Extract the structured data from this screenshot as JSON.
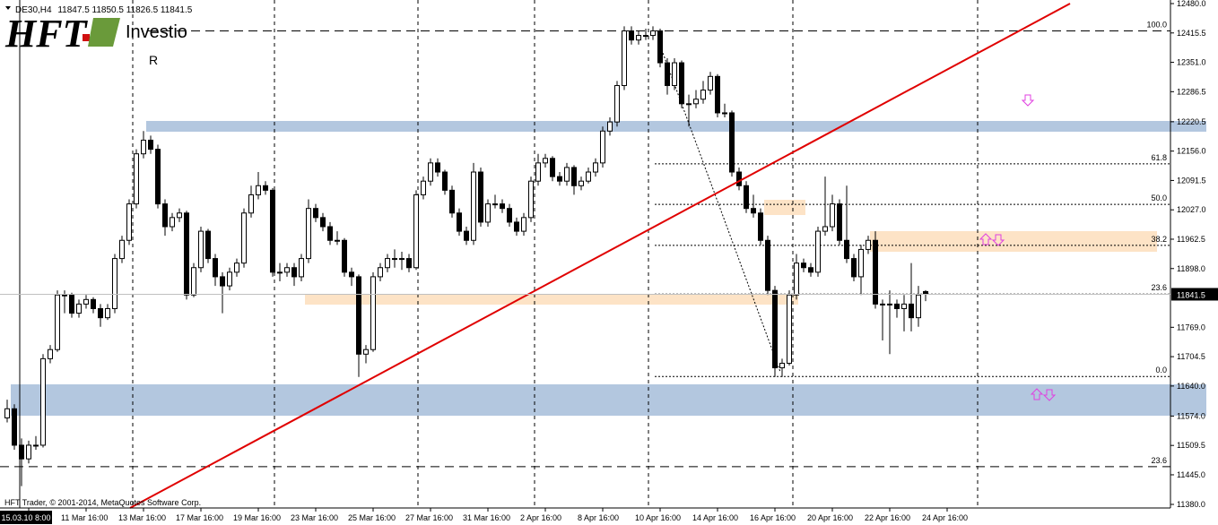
{
  "logo": {
    "brand": "HFT",
    "name": "Investio",
    "mark": "R"
  },
  "footer": "HFT Trader, © 2001-2014, MetaQuotes Software Corp.",
  "chart_data": {
    "type": "candlestick",
    "title": "DE30,H4",
    "ylim": [
      11380,
      12480
    ],
    "yticks": [
      {
        "value": 12480,
        "label": "12480.0"
      },
      {
        "value": 12415.5,
        "label": "12415.5"
      },
      {
        "value": 12351,
        "label": "12351.0"
      },
      {
        "value": 12286.5,
        "label": "12286.5"
      },
      {
        "value": 12220.5,
        "label": "12220.5"
      },
      {
        "value": 12156,
        "label": "12156.0"
      },
      {
        "value": 12091.5,
        "label": "12091.5"
      },
      {
        "value": 12027,
        "label": "12027.0"
      },
      {
        "value": 11962.5,
        "label": "11962.5"
      },
      {
        "value": 11898,
        "label": "11898.0"
      },
      {
        "value": 11769,
        "label": "11769.0"
      },
      {
        "value": 11704.5,
        "label": "11704.5"
      },
      {
        "value": 11640,
        "label": "11640.0"
      },
      {
        "value": 11574,
        "label": "11574.0"
      },
      {
        "value": 11509.5,
        "label": "11509.5"
      },
      {
        "value": 11445,
        "label": "11445.0"
      },
      {
        "value": 11380,
        "label": "11380.0"
      }
    ],
    "fibonacci": [
      {
        "value": 12420,
        "label": "100.0"
      },
      {
        "value": 12128,
        "label": "61.8"
      },
      {
        "value": 12039,
        "label": "50.0"
      },
      {
        "value": 11949,
        "label": "38.2"
      },
      {
        "value": 11842,
        "label": "23.6"
      },
      {
        "value": 11661,
        "label": "0.0"
      },
      {
        "value": 11463,
        "label": "23.6"
      }
    ],
    "x": [
      null,
      null,
      null,
      "15.03.10 8:00",
      null,
      null,
      null,
      null,
      null,
      null,
      null,
      "11 Mar 16:00",
      null,
      null,
      null,
      null,
      null,
      null,
      null,
      "13 Mar 16:00",
      null,
      null,
      null,
      null,
      null,
      null,
      null,
      "17 Mar 16:00",
      null,
      null,
      null,
      null,
      null,
      null,
      null,
      "19 Mar 16:00",
      null,
      null,
      null,
      null,
      null,
      null,
      null,
      "23 Mar 16:00",
      null,
      null,
      null,
      null,
      null,
      null,
      null,
      "25 Mar 16:00",
      null,
      null,
      null,
      null,
      null,
      null,
      null,
      "27 Mar 16:00",
      null,
      null,
      null,
      null,
      null,
      null,
      null,
      "31 Mar 16:00",
      null,
      null,
      null,
      null,
      null,
      null,
      null,
      "2 Apr 16:00",
      null,
      null,
      null,
      null,
      null,
      null,
      null,
      "8 Apr 16:00",
      null,
      null,
      null,
      null,
      null,
      null,
      null,
      "10 Apr 16:00",
      null,
      null,
      null,
      null,
      null,
      null,
      null,
      "14 Apr 16:00",
      null,
      null,
      null,
      null,
      null,
      null,
      null,
      "16 Apr 16:00",
      null,
      null,
      null,
      null,
      null,
      null,
      null,
      "20 Apr 16:00",
      null,
      null,
      null,
      null,
      null,
      null,
      null,
      "22 Apr 16:00",
      null,
      null,
      null,
      null,
      null,
      null,
      null,
      "24 Apr 16:00"
    ],
    "ohlc": [
      [
        11570,
        11610,
        11560,
        11590
      ],
      [
        11590,
        11600,
        11500,
        11510
      ],
      [
        11510,
        11525,
        11420,
        11480
      ],
      [
        11480,
        11520,
        11470,
        11510
      ],
      [
        11510,
        11530,
        11500,
        11510
      ],
      [
        11510,
        11710,
        11505,
        11700
      ],
      [
        11700,
        11730,
        11690,
        11720
      ],
      [
        11720,
        11850,
        11715,
        11840
      ],
      [
        11840,
        11850,
        11800,
        11840
      ],
      [
        11840,
        11845,
        11790,
        11800
      ],
      [
        11800,
        11830,
        11790,
        11820
      ],
      [
        11820,
        11840,
        11810,
        11830
      ],
      [
        11830,
        11835,
        11800,
        11810
      ],
      [
        11810,
        11820,
        11770,
        11790
      ],
      [
        11790,
        11820,
        11785,
        11810
      ],
      [
        11810,
        11930,
        11800,
        11920
      ],
      [
        11920,
        11970,
        11910,
        11960
      ],
      [
        11960,
        12050,
        11950,
        12040
      ],
      [
        12040,
        12160,
        12030,
        12150
      ],
      [
        12150,
        12200,
        12140,
        12180
      ],
      [
        12180,
        12190,
        12150,
        12160
      ],
      [
        12160,
        12170,
        12030,
        12040
      ],
      [
        12040,
        12050,
        11970,
        11990
      ],
      [
        11990,
        12020,
        11980,
        12010
      ],
      [
        12010,
        12030,
        12000,
        12020
      ],
      [
        12020,
        12025,
        11830,
        11840
      ],
      [
        11840,
        11910,
        11835,
        11900
      ],
      [
        11900,
        11990,
        11890,
        11980
      ],
      [
        11980,
        11985,
        11910,
        11920
      ],
      [
        11920,
        11930,
        11860,
        11880
      ],
      [
        11880,
        11890,
        11800,
        11860
      ],
      [
        11860,
        11900,
        11850,
        11890
      ],
      [
        11890,
        11920,
        11880,
        11910
      ],
      [
        11910,
        12030,
        11900,
        12020
      ],
      [
        12020,
        12080,
        12010,
        12060
      ],
      [
        12060,
        12110,
        12050,
        12080
      ],
      [
        12080,
        12090,
        12060,
        12070
      ],
      [
        12070,
        12075,
        11880,
        11890
      ],
      [
        11890,
        11910,
        11870,
        11890
      ],
      [
        11890,
        11910,
        11880,
        11900
      ],
      [
        11900,
        11910,
        11860,
        11880
      ],
      [
        11880,
        11930,
        11870,
        11920
      ],
      [
        11920,
        12050,
        11910,
        12030
      ],
      [
        12030,
        12040,
        12000,
        12010
      ],
      [
        12010,
        12020,
        11980,
        11990
      ],
      [
        11990,
        12000,
        11950,
        11960
      ],
      [
        11960,
        11980,
        11950,
        11960
      ],
      [
        11960,
        11965,
        11880,
        11890
      ],
      [
        11890,
        11900,
        11860,
        11880
      ],
      [
        11880,
        11885,
        11660,
        11710
      ],
      [
        11710,
        11730,
        11690,
        11720
      ],
      [
        11720,
        11890,
        11715,
        11880
      ],
      [
        11880,
        11910,
        11870,
        11900
      ],
      [
        11900,
        11930,
        11890,
        11920
      ],
      [
        11920,
        11940,
        11900,
        11920
      ],
      [
        11920,
        11935,
        11895,
        11920
      ],
      [
        11920,
        11930,
        11890,
        11900
      ],
      [
        11900,
        12070,
        11895,
        12060
      ],
      [
        12060,
        12100,
        12050,
        12090
      ],
      [
        12090,
        12140,
        12080,
        12130
      ],
      [
        12130,
        12140,
        12100,
        12110
      ],
      [
        12110,
        12115,
        12060,
        12070
      ],
      [
        12070,
        12080,
        12010,
        12020
      ],
      [
        12020,
        12030,
        11970,
        11980
      ],
      [
        11980,
        11990,
        11950,
        11960
      ],
      [
        11960,
        12130,
        11950,
        12110
      ],
      [
        12110,
        12120,
        11990,
        12000
      ],
      [
        12000,
        12050,
        11990,
        12040
      ],
      [
        12040,
        12060,
        12030,
        12040
      ],
      [
        12040,
        12050,
        12020,
        12030
      ],
      [
        12030,
        12040,
        11990,
        12000
      ],
      [
        12000,
        12010,
        11970,
        11980
      ],
      [
        11980,
        12020,
        11970,
        12010
      ],
      [
        12010,
        12100,
        12000,
        12090
      ],
      [
        12090,
        12150,
        12080,
        12130
      ],
      [
        12130,
        12150,
        12120,
        12140
      ],
      [
        12140,
        12145,
        12090,
        12100
      ],
      [
        12100,
        12110,
        12080,
        12090
      ],
      [
        12090,
        12130,
        12080,
        12120
      ],
      [
        12120,
        12125,
        12060,
        12080
      ],
      [
        12080,
        12100,
        12070,
        12090
      ],
      [
        12090,
        12120,
        12085,
        12110
      ],
      [
        12110,
        12140,
        12100,
        12130
      ],
      [
        12130,
        12210,
        12120,
        12200
      ],
      [
        12200,
        12230,
        12190,
        12220
      ],
      [
        12220,
        12310,
        12210,
        12300
      ],
      [
        12300,
        12430,
        12290,
        12420
      ],
      [
        12420,
        12430,
        12390,
        12400
      ],
      [
        12400,
        12420,
        12390,
        12410
      ],
      [
        12410,
        12425,
        12400,
        12410
      ],
      [
        12410,
        12430,
        12400,
        12420
      ],
      [
        12420,
        12425,
        12340,
        12350
      ],
      [
        12350,
        12360,
        12280,
        12300
      ],
      [
        12300,
        12360,
        12290,
        12350
      ],
      [
        12350,
        12355,
        12250,
        12260
      ],
      [
        12260,
        12280,
        12210,
        12260
      ],
      [
        12260,
        12290,
        12250,
        12270
      ],
      [
        12270,
        12310,
        12260,
        12290
      ],
      [
        12290,
        12330,
        12280,
        12320
      ],
      [
        12320,
        12325,
        12230,
        12240
      ],
      [
        12240,
        12260,
        12230,
        12240
      ],
      [
        12240,
        12245,
        12100,
        12110
      ],
      [
        12110,
        12120,
        12070,
        12080
      ],
      [
        12080,
        12090,
        12020,
        12030
      ],
      [
        12030,
        12060,
        12010,
        12020
      ],
      [
        12020,
        12030,
        11950,
        11960
      ],
      [
        11960,
        11970,
        11840,
        11850
      ],
      [
        11850,
        11860,
        11660,
        11680
      ],
      [
        11680,
        11700,
        11660,
        11690
      ],
      [
        11690,
        11850,
        11685,
        11840
      ],
      [
        11840,
        11930,
        11830,
        11910
      ],
      [
        11910,
        11920,
        11890,
        11900
      ],
      [
        11900,
        11910,
        11880,
        11890
      ],
      [
        11890,
        11990,
        11880,
        11980
      ],
      [
        11980,
        12100,
        11970,
        11990
      ],
      [
        11990,
        12060,
        11980,
        12040
      ],
      [
        12040,
        12050,
        11950,
        11960
      ],
      [
        11960,
        12080,
        11910,
        11920
      ],
      [
        11920,
        11930,
        11870,
        11880
      ],
      [
        11880,
        11950,
        11840,
        11940
      ],
      [
        11940,
        11970,
        11930,
        11960
      ],
      [
        11960,
        11980,
        11810,
        11820
      ],
      [
        11820,
        11830,
        11740,
        11820
      ],
      [
        11820,
        11850,
        11710,
        11820
      ],
      [
        11820,
        11830,
        11790,
        11810
      ],
      [
        11810,
        11840,
        11760,
        11820
      ],
      [
        11820,
        11910,
        11760,
        11790
      ],
      [
        11790,
        11860,
        11770,
        11840
      ],
      [
        11847.5,
        11850.5,
        11826.5,
        11841.5
      ],
      null,
      null,
      null
    ]
  }
}
